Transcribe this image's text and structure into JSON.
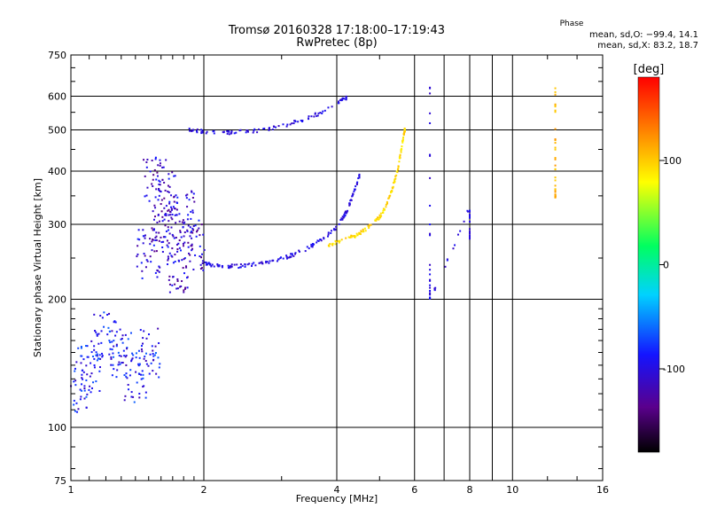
{
  "header": {
    "title_line1": "Tromsø 20160328 17:18:00–17:19:43",
    "title_line2": "RwPretec (8p)",
    "phase_label": "Phase",
    "phase_o": "mean, sd,O: −99.4, 14.1",
    "phase_x": "mean, sd,X: 83.2, 18.7"
  },
  "colorbar": {
    "unit": "[deg]",
    "ticks": [
      100,
      0,
      -100
    ],
    "range": [
      -180,
      180
    ],
    "colors": [
      "#000000",
      "#5a008c",
      "#1414ff",
      "#00d2ff",
      "#00ff60",
      "#ffff00",
      "#ff8000",
      "#ff0000"
    ]
  },
  "chart_data": {
    "type": "scatter",
    "title": "Tromsø 20160328 17:18:00–17:19:43",
    "subtitle": "RwPretec (8p)",
    "xlabel": "Frequency [MHz]",
    "ylabel": "Stationary phase Virtual Height [km]",
    "x_scale": "log",
    "y_scale": "log",
    "xlim": [
      1,
      16
    ],
    "ylim": [
      75,
      750
    ],
    "x_ticks": [
      1,
      2,
      4,
      6,
      8,
      10,
      16
    ],
    "y_ticks": [
      75,
      100,
      200,
      300,
      400,
      500,
      600,
      750
    ],
    "grid": true,
    "color_by": "phase [deg]",
    "series": [
      {
        "trace": "O-mode F2 trace (blue)",
        "phase": -100,
        "points": [
          [
            1.99,
            244
          ],
          [
            2.1,
            240
          ],
          [
            2.3,
            239
          ],
          [
            2.5,
            240
          ],
          [
            2.8,
            244
          ],
          [
            3.1,
            252
          ],
          [
            3.4,
            262
          ],
          [
            3.7,
            276
          ],
          [
            4.0,
            296
          ],
          [
            4.2,
            320
          ],
          [
            4.35,
            350
          ],
          [
            4.5,
            390
          ]
        ]
      },
      {
        "trace": "X-mode F2 trace (yellow)",
        "phase": 95,
        "points": [
          [
            3.8,
            268
          ],
          [
            4.1,
            274
          ],
          [
            4.4,
            282
          ],
          [
            4.7,
            294
          ],
          [
            5.0,
            312
          ],
          [
            5.2,
            335
          ],
          [
            5.35,
            365
          ],
          [
            5.5,
            405
          ],
          [
            5.6,
            450
          ],
          [
            5.7,
            500
          ]
        ]
      },
      {
        "trace": "O-mode upper arc (blue)",
        "phase": -100,
        "points": [
          [
            1.85,
            500
          ],
          [
            2.0,
            495
          ],
          [
            2.3,
            493
          ],
          [
            2.6,
            497
          ],
          [
            3.0,
            510
          ],
          [
            3.4,
            530
          ],
          [
            3.8,
            558
          ],
          [
            4.2,
            595
          ]
        ]
      },
      {
        "trace": "Spread F near 1.6-1.9 MHz (blue)",
        "phase": -110,
        "points": [
          [
            1.5,
            260
          ],
          [
            1.6,
            300
          ],
          [
            1.7,
            280
          ],
          [
            1.8,
            320
          ],
          [
            1.9,
            270
          ],
          [
            1.55,
            380
          ],
          [
            1.75,
            240
          ],
          [
            1.65,
            350
          ]
        ]
      },
      {
        "trace": "E/Es region 1.05-1.5 MHz (blue/green)",
        "phase": -90,
        "points": [
          [
            1.05,
            125
          ],
          [
            1.1,
            140
          ],
          [
            1.2,
            165
          ],
          [
            1.3,
            150
          ],
          [
            1.4,
            133
          ],
          [
            1.5,
            150
          ]
        ]
      },
      {
        "trace": "Isolated echoes near 6.5-8 MHz",
        "phase": -100,
        "points": [
          [
            6.5,
            650
          ],
          [
            6.5,
            230
          ],
          [
            6.5,
            200
          ],
          [
            8.0,
            330
          ],
          [
            8.0,
            280
          ]
        ]
      },
      {
        "trace": "Isolated echoes near 12.5 MHz",
        "phase": 110,
        "points": [
          [
            12.5,
            640
          ],
          [
            12.5,
            460
          ],
          [
            12.5,
            350
          ]
        ]
      }
    ]
  }
}
